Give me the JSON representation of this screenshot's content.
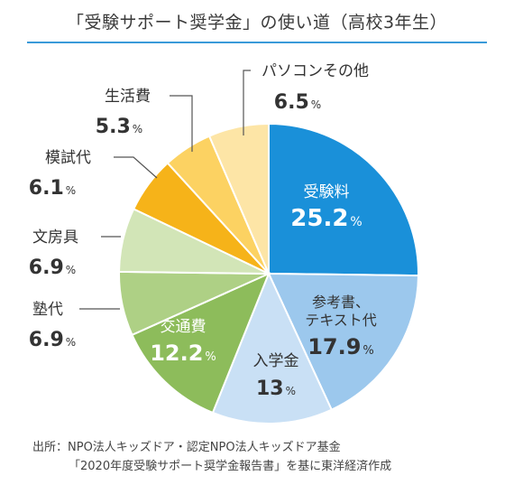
{
  "title": "「受験サポート奨学金」の使い道（高校3年生）",
  "source": {
    "line1": "出所：NPO法人キッズドア・認定NPO法人キッズドア基金",
    "line2": "「2020年度受験サポート奨学金報告書」を基に東洋経済作成"
  },
  "chart_data": {
    "type": "pie",
    "title": "「受験サポート奨学金」の使い道（高校3年生）",
    "start": "12 o'clock",
    "direction": "clockwise",
    "slices": [
      {
        "label": "受験料",
        "value": 25.2,
        "display": "25.2",
        "unit": "%",
        "color": "#1a90d9",
        "label_position": "inside",
        "text_color": "#ffffff"
      },
      {
        "label": "参考書、\nテキスト代",
        "value": 17.9,
        "display": "17.9",
        "unit": "%",
        "color": "#9cc8ed",
        "label_position": "inside",
        "text_color": "#333333"
      },
      {
        "label": "入学金",
        "value": 13,
        "display": "13",
        "unit": "%",
        "color": "#c9e0f5",
        "label_position": "inside",
        "text_color": "#333333"
      },
      {
        "label": "交通費",
        "value": 12.2,
        "display": "12.2",
        "unit": "%",
        "color": "#8dbc5b",
        "label_position": "inside",
        "text_color": "#ffffff"
      },
      {
        "label": "塾代",
        "value": 6.9,
        "display": "6.9",
        "unit": "%",
        "color": "#aed085",
        "label_position": "outside",
        "text_color": "#333333"
      },
      {
        "label": "文房具",
        "value": 6.9,
        "display": "6.9",
        "unit": "%",
        "color": "#d2e5b7",
        "label_position": "outside",
        "text_color": "#333333"
      },
      {
        "label": "模試代",
        "value": 6.1,
        "display": "6.1",
        "unit": "%",
        "color": "#f6b319",
        "label_position": "outside",
        "text_color": "#333333"
      },
      {
        "label": "生活費",
        "value": 5.3,
        "display": "5.3",
        "unit": "%",
        "color": "#fcd262",
        "label_position": "outside",
        "text_color": "#333333"
      },
      {
        "label": "パソコンその他",
        "value": 6.5,
        "display": "6.5",
        "unit": "%",
        "color": "#fde5a6",
        "label_position": "outside",
        "text_color": "#333333"
      }
    ]
  }
}
